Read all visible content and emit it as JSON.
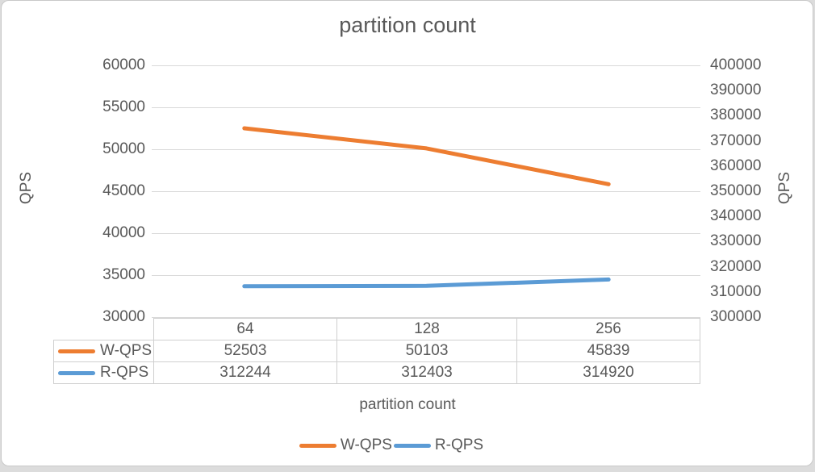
{
  "chart_data": {
    "type": "line",
    "title": "partition count",
    "xlabel": "partition count",
    "categories": [
      "64",
      "128",
      "256"
    ],
    "series": [
      {
        "name": "W-QPS",
        "values": [
          52503,
          50103,
          45839
        ],
        "color": "#ED7D31",
        "axis": "left"
      },
      {
        "name": "R-QPS",
        "values": [
          312244,
          312403,
          314920
        ],
        "color": "#5B9BD5",
        "axis": "right"
      }
    ],
    "left_axis": {
      "label": "QPS",
      "min": 30000,
      "max": 60000,
      "step": 5000
    },
    "right_axis": {
      "label": "QPS",
      "min": 300000,
      "max": 400000,
      "step": 10000
    },
    "grid": "horizontal",
    "legend_position": "bottom",
    "data_table_shown": true,
    "colors": {
      "text": "#595959",
      "gridline": "#d9d9d9",
      "table_border": "#cfcfcf"
    }
  }
}
